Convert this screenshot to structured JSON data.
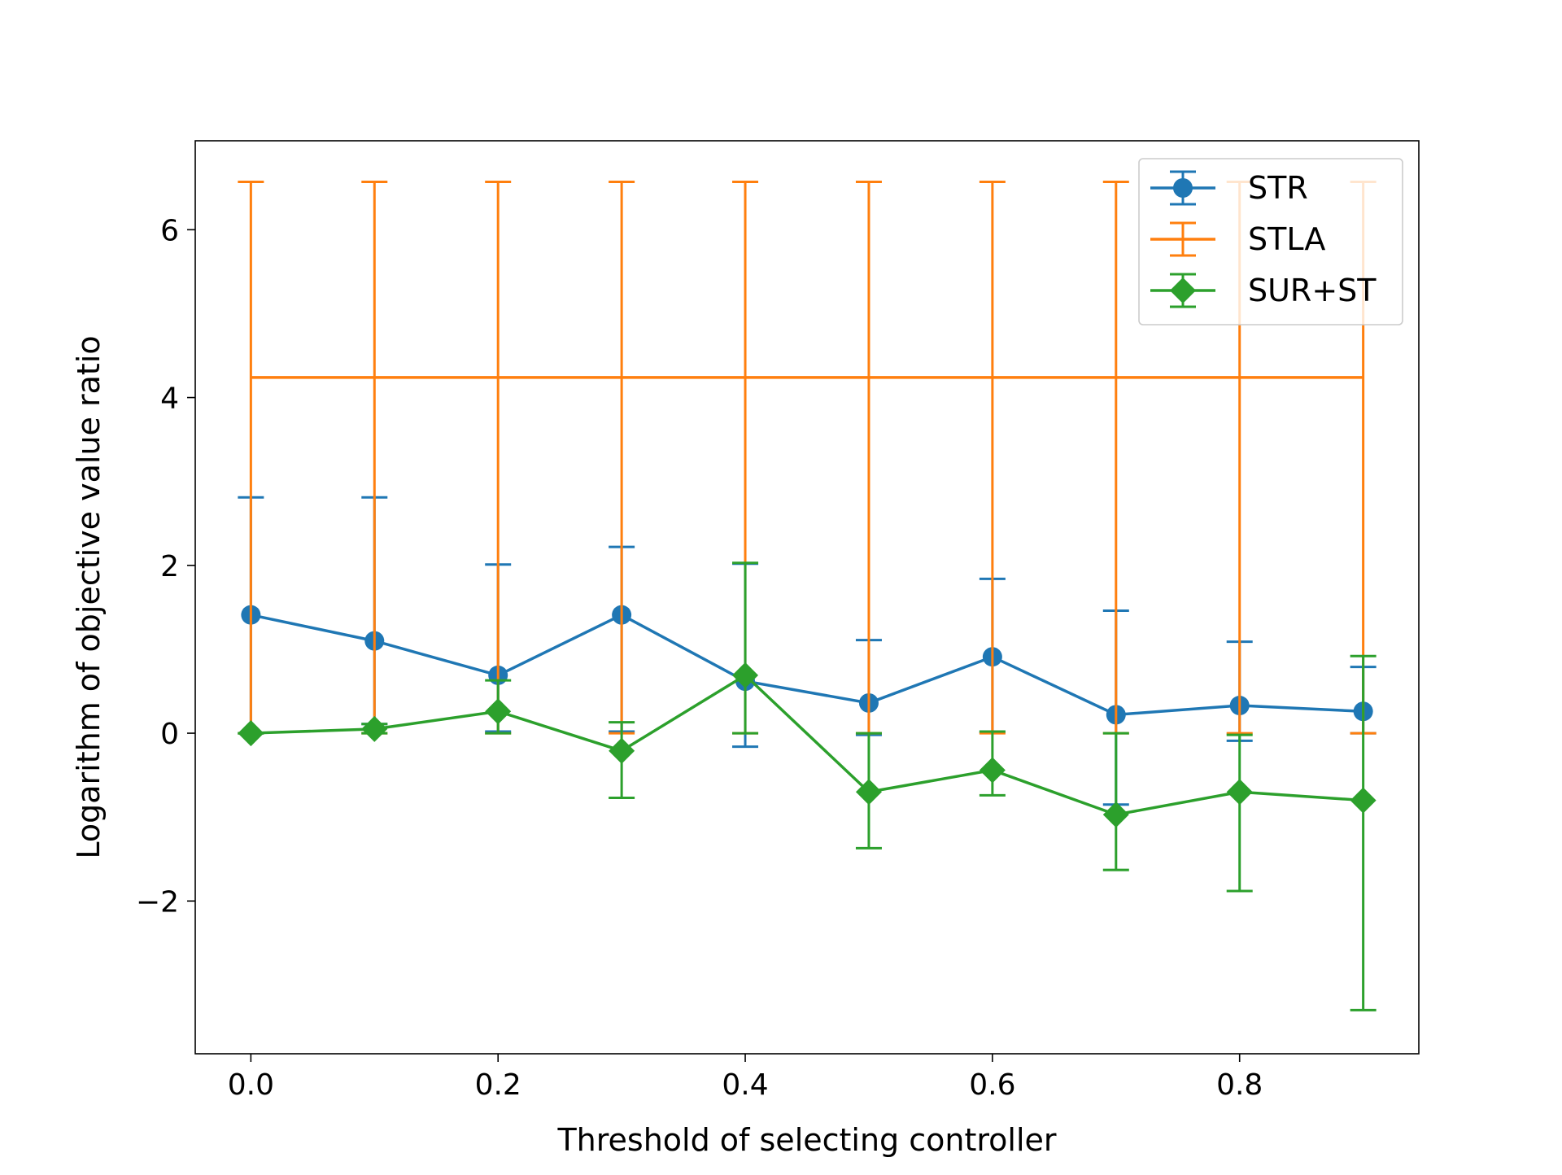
{
  "chart_data": {
    "type": "line",
    "title": "",
    "xlabel": "Threshold of selecting controller",
    "ylabel": "Logarithm of objective value ratio",
    "x": [
      0.0,
      0.1,
      0.2,
      0.3,
      0.4,
      0.5,
      0.6,
      0.7,
      0.8,
      0.9
    ],
    "xlim": [
      -0.045,
      0.945
    ],
    "ylim": [
      -3.82,
      7.06
    ],
    "xticks": [
      0.0,
      0.2,
      0.4,
      0.6,
      0.8
    ],
    "xtick_labels": [
      "0.0",
      "0.2",
      "0.4",
      "0.6",
      "0.8"
    ],
    "yticks": [
      -2,
      0,
      2,
      4,
      6
    ],
    "ytick_labels": [
      "−2",
      "0",
      "2",
      "4",
      "6"
    ],
    "grid": false,
    "legend_position": "top-right",
    "series": [
      {
        "name": "STR",
        "color": "#1f77b4",
        "marker": "circle",
        "show_line": true,
        "values": [
          1.41,
          1.1,
          0.69,
          1.41,
          0.62,
          0.36,
          0.91,
          0.22,
          0.33,
          0.26
        ],
        "err_low": [
          0.0,
          0.11,
          0.02,
          0.02,
          -0.16,
          -0.02,
          0.01,
          -0.85,
          -0.09,
          0.0
        ],
        "err_high": [
          2.81,
          2.81,
          2.01,
          2.22,
          2.02,
          1.11,
          1.84,
          1.46,
          1.09,
          0.79
        ]
      },
      {
        "name": "STLA",
        "color": "#ff7f0e",
        "marker": "none",
        "show_line": true,
        "values": [
          4.24,
          4.24,
          4.24,
          4.24,
          4.24,
          4.24,
          4.24,
          4.24,
          4.24,
          4.24
        ],
        "err_low": [
          0.0,
          0.0,
          0.0,
          0.0,
          0.0,
          0.0,
          0.0,
          0.0,
          0.0,
          0.0
        ],
        "err_high": [
          6.57,
          6.57,
          6.57,
          6.57,
          6.57,
          6.57,
          6.57,
          6.57,
          6.57,
          6.57
        ]
      },
      {
        "name": "SUR+ST",
        "color": "#2ca02c",
        "marker": "diamond",
        "show_line": true,
        "values": [
          0.0,
          0.05,
          0.26,
          -0.21,
          0.69,
          -0.7,
          -0.44,
          -0.97,
          -0.7,
          -0.8
        ],
        "err_low": [
          0.0,
          0.0,
          0.0,
          -0.77,
          0.0,
          -1.37,
          -0.74,
          -1.63,
          -1.88,
          -3.3
        ],
        "err_high": [
          0.0,
          0.11,
          0.63,
          0.13,
          2.03,
          0.0,
          0.02,
          0.0,
          -0.02,
          0.92
        ]
      }
    ]
  }
}
